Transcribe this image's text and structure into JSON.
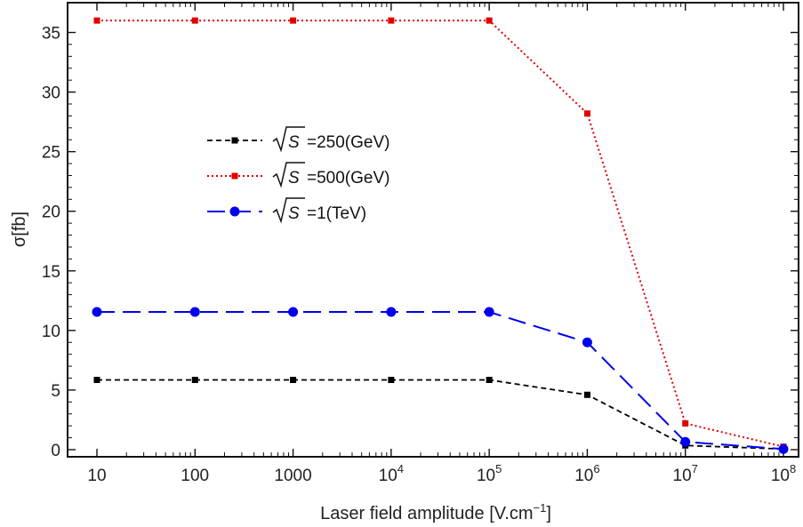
{
  "chart_data": {
    "type": "line",
    "x": [
      "10",
      "100",
      "1000",
      "10^4",
      "10^5",
      "10^6",
      "10^7",
      "10^8"
    ],
    "x_tick_labels": [
      {
        "base": "10",
        "exp": ""
      },
      {
        "base": "100",
        "exp": ""
      },
      {
        "base": "1000",
        "exp": ""
      },
      {
        "base": "10",
        "exp": "4"
      },
      {
        "base": "10",
        "exp": "5"
      },
      {
        "base": "10",
        "exp": "6"
      },
      {
        "base": "10",
        "exp": "7"
      },
      {
        "base": "10",
        "exp": "8"
      }
    ],
    "x_scale": "log",
    "xlabel": "Laser field amplitude [V.cm",
    "xlabel_exp": "−1",
    "xlabel_end": "]",
    "ylabel": "σ[fb]",
    "ylim": [
      -0.6,
      37.5
    ],
    "y_ticks": [
      0,
      5,
      10,
      15,
      20,
      25,
      30,
      35
    ],
    "legend_position": "upper-left",
    "grid": false,
    "series": [
      {
        "name": "=250(GeV)",
        "sqrt_label": "S",
        "color": "#000000",
        "marker": "square",
        "dash": "dashed",
        "values": [
          5.85,
          5.85,
          5.85,
          5.85,
          5.85,
          4.6,
          0.35,
          0.05
        ]
      },
      {
        "name": "=500(GeV)",
        "sqrt_label": "S",
        "color": "#e00000",
        "marker": "square",
        "dash": "dotted",
        "values": [
          36.0,
          36.0,
          36.0,
          36.0,
          36.0,
          28.2,
          2.2,
          0.25
        ]
      },
      {
        "name": "=1(TeV)",
        "sqrt_label": "S",
        "color": "#0000ee",
        "marker": "circle",
        "dash": "longdash",
        "values": [
          11.55,
          11.55,
          11.55,
          11.55,
          11.55,
          9.0,
          0.65,
          0.05
        ]
      }
    ]
  }
}
